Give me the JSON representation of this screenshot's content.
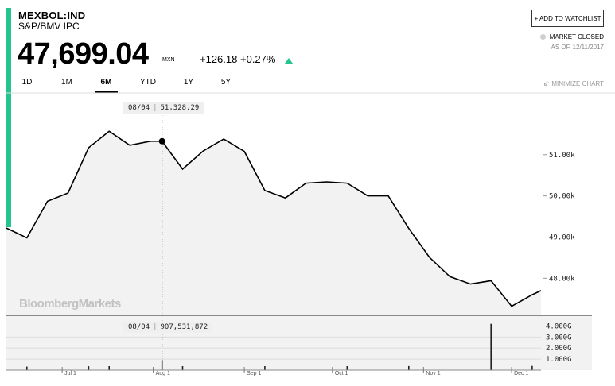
{
  "header": {
    "ticker": "MEXBOL:IND",
    "name": "S&P/BMV IPC",
    "price": "47,699.04",
    "currency": "MXN",
    "change": "+126.18",
    "change_pct": "+0.27%",
    "watchlist_label": "+ ADD TO WATCHLIST",
    "market_status": "MARKET CLOSED",
    "as_of_label": "AS OF",
    "as_of_date": "12/11/2017"
  },
  "colors": {
    "accent": "#23c48e",
    "line": "#000000",
    "fill": "#f2f2f2"
  },
  "tabs": [
    {
      "label": "1D",
      "active": false
    },
    {
      "label": "1M",
      "active": false
    },
    {
      "label": "6M",
      "active": true
    },
    {
      "label": "YTD",
      "active": false
    },
    {
      "label": "1Y",
      "active": false
    },
    {
      "label": "5Y",
      "active": false
    }
  ],
  "minimize_label": "MINIMIZE CHART",
  "minimize_icon": "minimize-icon",
  "watermark": "BloombergMarkets",
  "tooltips": {
    "price": {
      "date": "08/04",
      "value": "51,328.29"
    },
    "volume": {
      "date": "08/04",
      "value": "907,531,872"
    }
  },
  "chart_data": {
    "type": "line",
    "title": "",
    "xlabel": "",
    "ylabel": "",
    "x_ticks": [
      "Jul 1",
      "Aug 1",
      "Sep 1",
      "Oct 1",
      "Nov 1",
      "Dec 1"
    ],
    "y_ticks": [
      "51.00k",
      "50.00k",
      "49.00k",
      "48.00k"
    ],
    "ylim": [
      47100,
      52500
    ],
    "series": [
      {
        "x": [
          "2017-06-12",
          "2017-06-19",
          "2017-06-26",
          "2017-07-03",
          "2017-07-10",
          "2017-07-17",
          "2017-07-24",
          "2017-07-31",
          "2017-08-04",
          "2017-08-11",
          "2017-08-18",
          "2017-08-25",
          "2017-09-01",
          "2017-09-08",
          "2017-09-15",
          "2017-09-22",
          "2017-09-29",
          "2017-10-06",
          "2017-10-13",
          "2017-10-20",
          "2017-10-27",
          "2017-11-03",
          "2017-11-10",
          "2017-11-17",
          "2017-11-24",
          "2017-12-01",
          "2017-12-08",
          "2017-12-11"
        ],
        "values": [
          49220,
          48980,
          49870,
          50070,
          51170,
          51570,
          51230,
          51328,
          51328,
          50650,
          51090,
          51380,
          51080,
          50130,
          49950,
          50310,
          50340,
          50310,
          50000,
          50000,
          49210,
          48510,
          48040,
          47860,
          47940,
          47320,
          47600,
          47699
        ]
      }
    ],
    "volume": {
      "y_ticks": [
        "4.000G",
        "3.000G",
        "2.000G",
        "1.000G"
      ],
      "ylim": [
        0,
        4900000000
      ],
      "values": [
        0,
        320000000,
        0,
        0,
        350000000,
        360000000,
        0,
        0,
        907531872,
        360000000,
        0,
        0,
        0,
        360000000,
        0,
        0,
        0,
        360000000,
        0,
        0,
        370000000,
        0,
        0,
        0,
        4200000000,
        0,
        380000000,
        0
      ]
    }
  }
}
